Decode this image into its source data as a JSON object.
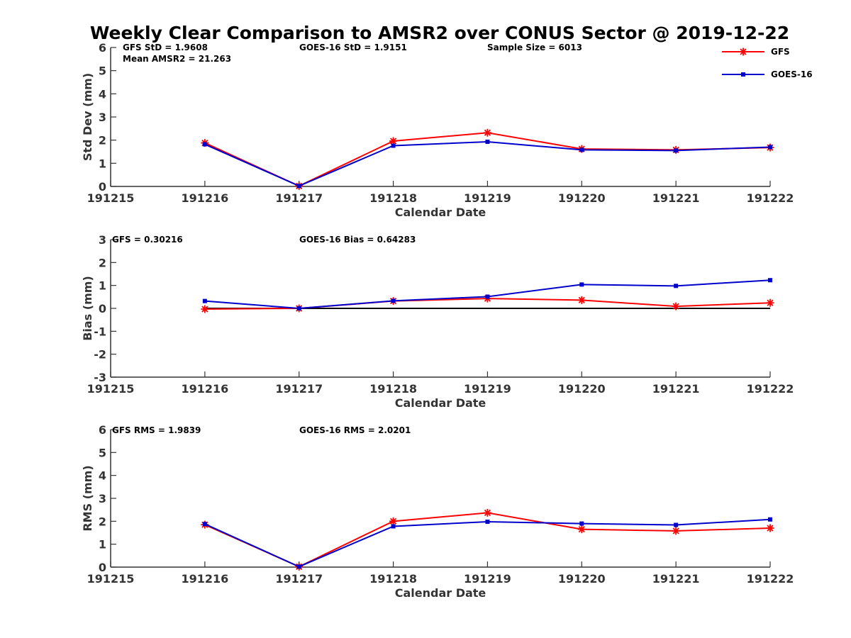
{
  "title": "Weekly Clear Comparison to AMSR2 over CONUS Sector @ 2019-12-22",
  "legend": {
    "placement": "top-right",
    "entries": [
      {
        "name": "GFS",
        "color": "#ff0000",
        "marker": "asterisk"
      },
      {
        "name": "GOES-16",
        "color": "#0000cc",
        "marker": "square"
      }
    ]
  },
  "chart_data": [
    {
      "type": "line",
      "xlabel": "Calendar Date",
      "ylabel": "Std Dev (mm)",
      "xlim": [
        191215,
        191222
      ],
      "ylim": [
        0,
        6
      ],
      "yticks": [
        0,
        1,
        2,
        3,
        4,
        5,
        6
      ],
      "x": [
        191216,
        191217,
        191218,
        191219,
        191220,
        191221,
        191222
      ],
      "x_tick_labels": [
        "191215",
        "191216",
        "191217",
        "191218",
        "191219",
        "191220",
        "191221",
        "191222"
      ],
      "series": [
        {
          "name": "GFS",
          "color": "#ff0000",
          "values": [
            1.88,
            0.02,
            1.96,
            2.32,
            1.62,
            1.58,
            1.68
          ]
        },
        {
          "name": "GOES-16",
          "color": "#0000cc",
          "values": [
            1.82,
            0.02,
            1.76,
            1.93,
            1.58,
            1.55,
            1.7
          ]
        }
      ],
      "annotations": [
        "GFS StD = 1.9608",
        "GOES-16 StD = 1.9151",
        "Sample Size = 6013",
        "Mean AMSR2 = 21.263"
      ]
    },
    {
      "type": "line",
      "xlabel": "Calendar Date",
      "ylabel": "Bias (mm)",
      "xlim": [
        191215,
        191222
      ],
      "ylim": [
        -3,
        3
      ],
      "yticks": [
        -3,
        -2,
        -1,
        0,
        1,
        2,
        3
      ],
      "x": [
        191216,
        191217,
        191218,
        191219,
        191220,
        191221,
        191222
      ],
      "x_tick_labels": [
        "191215",
        "191216",
        "191217",
        "191218",
        "191219",
        "191220",
        "191221",
        "191222"
      ],
      "zero_line": true,
      "series": [
        {
          "name": "GFS",
          "color": "#ff0000",
          "values": [
            -0.03,
            0.0,
            0.32,
            0.43,
            0.36,
            0.09,
            0.24
          ]
        },
        {
          "name": "GOES-16",
          "color": "#0000cc",
          "values": [
            0.32,
            0.0,
            0.33,
            0.51,
            1.04,
            0.98,
            1.23
          ]
        }
      ],
      "annotations": [
        "GFS = 0.30216",
        "GOES-16 Bias  = 0.64283"
      ]
    },
    {
      "type": "line",
      "xlabel": "Calendar Date",
      "ylabel": "RMS (mm)",
      "xlim": [
        191215,
        191222
      ],
      "ylim": [
        0,
        6
      ],
      "yticks": [
        0,
        1,
        2,
        3,
        4,
        5,
        6
      ],
      "x": [
        191216,
        191217,
        191218,
        191219,
        191220,
        191221,
        191222
      ],
      "x_tick_labels": [
        "191215",
        "191216",
        "191217",
        "191218",
        "191219",
        "191220",
        "191221",
        "191222"
      ],
      "series": [
        {
          "name": "GFS",
          "color": "#ff0000",
          "values": [
            1.85,
            0.02,
            2.0,
            2.37,
            1.65,
            1.58,
            1.7
          ]
        },
        {
          "name": "GOES-16",
          "color": "#0000cc",
          "values": [
            1.88,
            0.02,
            1.78,
            1.98,
            1.9,
            1.84,
            2.08
          ]
        }
      ],
      "annotations": [
        "GFS RMS = 1.9839",
        "GOES-16 RMS = 2.0201"
      ]
    }
  ]
}
